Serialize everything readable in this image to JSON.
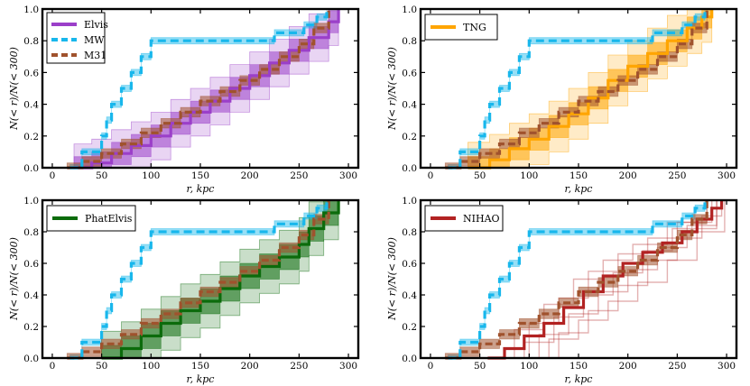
{
  "chart_data": [
    {
      "type": "line",
      "panel": "top-left",
      "xlabel": "r, kpc",
      "ylabel": "N(< r)/N(< 300)",
      "xlim": [
        -10,
        310
      ],
      "ylim": [
        0,
        1
      ],
      "xticks": [
        "0",
        "50",
        "100",
        "150",
        "200",
        "250",
        "300"
      ],
      "yticks": [
        "0.0",
        "0.2",
        "0.4",
        "0.6",
        "0.8",
        "1.0"
      ],
      "legend_position": "top-left",
      "legend": [
        {
          "label": "Elvis",
          "color": "#9b3fc9",
          "style": "solid"
        },
        {
          "label": "MW",
          "color": "#18b7ec",
          "style": "dashed"
        },
        {
          "label": "M31",
          "color": "#a0522d",
          "style": "dashed"
        }
      ],
      "main": {
        "name": "Elvis",
        "color": "#9b3fc9",
        "x": [
          22,
          40,
          60,
          80,
          100,
          120,
          140,
          160,
          180,
          200,
          220,
          240,
          260,
          280,
          290
        ],
        "y": [
          0.0,
          0.03,
          0.09,
          0.14,
          0.2,
          0.28,
          0.35,
          0.42,
          0.5,
          0.58,
          0.66,
          0.74,
          0.82,
          0.92,
          1.0
        ],
        "band1": 0.07,
        "band2": 0.15
      }
    },
    {
      "type": "line",
      "panel": "top-right",
      "xlabel": "r, kpc",
      "ylabel": "N(< r)/N(< 300)",
      "xlim": [
        -10,
        310
      ],
      "ylim": [
        0,
        1
      ],
      "xticks": [
        "0",
        "50",
        "100",
        "150",
        "200",
        "250",
        "300"
      ],
      "yticks": [
        "0.0",
        "0.2",
        "0.4",
        "0.6",
        "0.8",
        "1.0"
      ],
      "legend_position": "top-left",
      "legend": [
        {
          "label": "TNG",
          "color": "#ffa500",
          "style": "solid"
        }
      ],
      "main": {
        "name": "TNG",
        "color": "#ffa500",
        "x": [
          38,
          60,
          80,
          100,
          120,
          140,
          160,
          180,
          200,
          220,
          240,
          260,
          275,
          285
        ],
        "y": [
          0.0,
          0.05,
          0.12,
          0.18,
          0.26,
          0.34,
          0.44,
          0.55,
          0.64,
          0.72,
          0.8,
          0.88,
          0.95,
          1.0
        ],
        "band1": 0.07,
        "band2": 0.16
      }
    },
    {
      "type": "line",
      "panel": "bottom-left",
      "xlabel": "r, kpc",
      "ylabel": "N(< r)/N(< 300)",
      "xlim": [
        -10,
        310
      ],
      "ylim": [
        0,
        1
      ],
      "xticks": [
        "0",
        "50",
        "100",
        "150",
        "200",
        "250",
        "300"
      ],
      "yticks": [
        "0.0",
        "0.2",
        "0.4",
        "0.6",
        "0.8",
        "1.0"
      ],
      "legend_position": "top-left",
      "legend": [
        {
          "label": "PhatElvis",
          "color": "#0b6b0b",
          "style": "solid"
        }
      ],
      "main": {
        "name": "PhatElvis",
        "color": "#0b6b0b",
        "x": [
          50,
          70,
          90,
          110,
          130,
          150,
          170,
          190,
          210,
          230,
          250,
          260,
          275,
          290
        ],
        "y": [
          0.0,
          0.06,
          0.14,
          0.22,
          0.3,
          0.36,
          0.44,
          0.52,
          0.58,
          0.64,
          0.72,
          0.82,
          0.92,
          1.0
        ],
        "band1": 0.08,
        "band2": 0.17
      }
    },
    {
      "type": "line",
      "panel": "bottom-right",
      "xlabel": "r, kpc",
      "ylabel": "N(< r)/N(< 300)",
      "xlim": [
        -10,
        310
      ],
      "ylim": [
        0,
        1
      ],
      "xticks": [
        "0",
        "50",
        "100",
        "150",
        "200",
        "250",
        "300"
      ],
      "yticks": [
        "0.0",
        "0.2",
        "0.4",
        "0.6",
        "0.8",
        "1.0"
      ],
      "legend_position": "top-left",
      "legend": [
        {
          "label": "NIHAO",
          "color": "#b22222",
          "style": "solid"
        }
      ],
      "main": {
        "name": "NIHAO",
        "color": "#b22222",
        "x": [
          58,
          75,
          95,
          115,
          135,
          155,
          175,
          195,
          215,
          235,
          255,
          270,
          285,
          295
        ],
        "y": [
          0.0,
          0.06,
          0.14,
          0.22,
          0.32,
          0.42,
          0.52,
          0.6,
          0.67,
          0.73,
          0.8,
          0.88,
          0.95,
          1.0
        ],
        "thin_lines": [
          {
            "x": [
              80,
              110,
              140,
              170,
              200,
              230,
              260,
              290
            ],
            "y": [
              0.0,
              0.15,
              0.28,
              0.42,
              0.56,
              0.7,
              0.84,
              1.0
            ]
          },
          {
            "x": [
              70,
              100,
              130,
              160,
              190,
              220,
              250,
              285
            ],
            "y": [
              0.0,
              0.22,
              0.38,
              0.55,
              0.66,
              0.76,
              0.86,
              1.0
            ]
          },
          {
            "x": [
              90,
              120,
              150,
              180,
              210,
              240,
              270,
              298
            ],
            "y": [
              0.0,
              0.12,
              0.24,
              0.36,
              0.48,
              0.62,
              0.8,
              1.0
            ]
          },
          {
            "x": [
              60,
              85,
              115,
              145,
              175,
              205,
              240,
              280
            ],
            "y": [
              0.0,
              0.18,
              0.34,
              0.5,
              0.62,
              0.72,
              0.86,
              1.0
            ]
          },
          {
            "x": [
              100,
              130,
              160,
              190,
              220,
              250,
              275,
              295
            ],
            "y": [
              0.0,
              0.16,
              0.3,
              0.46,
              0.62,
              0.76,
              0.9,
              1.0
            ]
          },
          {
            "x": [
              65,
              95,
              125,
              155,
              185,
              215,
              245,
              290
            ],
            "y": [
              0.0,
              0.1,
              0.26,
              0.4,
              0.54,
              0.68,
              0.82,
              1.0
            ]
          }
        ]
      }
    }
  ],
  "reference_curves": {
    "MW": {
      "color": "#18b7ec",
      "x": [
        18,
        30,
        50,
        55,
        60,
        70,
        80,
        90,
        100,
        225,
        255,
        268,
        278
      ],
      "y": [
        0.0,
        0.1,
        0.2,
        0.3,
        0.4,
        0.5,
        0.6,
        0.7,
        0.8,
        0.85,
        0.9,
        0.95,
        1.0
      ]
    },
    "M31": {
      "color": "#a0522d",
      "x": [
        15,
        30,
        50,
        70,
        90,
        110,
        130,
        150,
        170,
        190,
        210,
        230,
        250,
        265,
        280
      ],
      "y": [
        0.0,
        0.04,
        0.09,
        0.15,
        0.22,
        0.28,
        0.35,
        0.42,
        0.48,
        0.55,
        0.62,
        0.7,
        0.78,
        0.88,
        1.0
      ]
    }
  }
}
